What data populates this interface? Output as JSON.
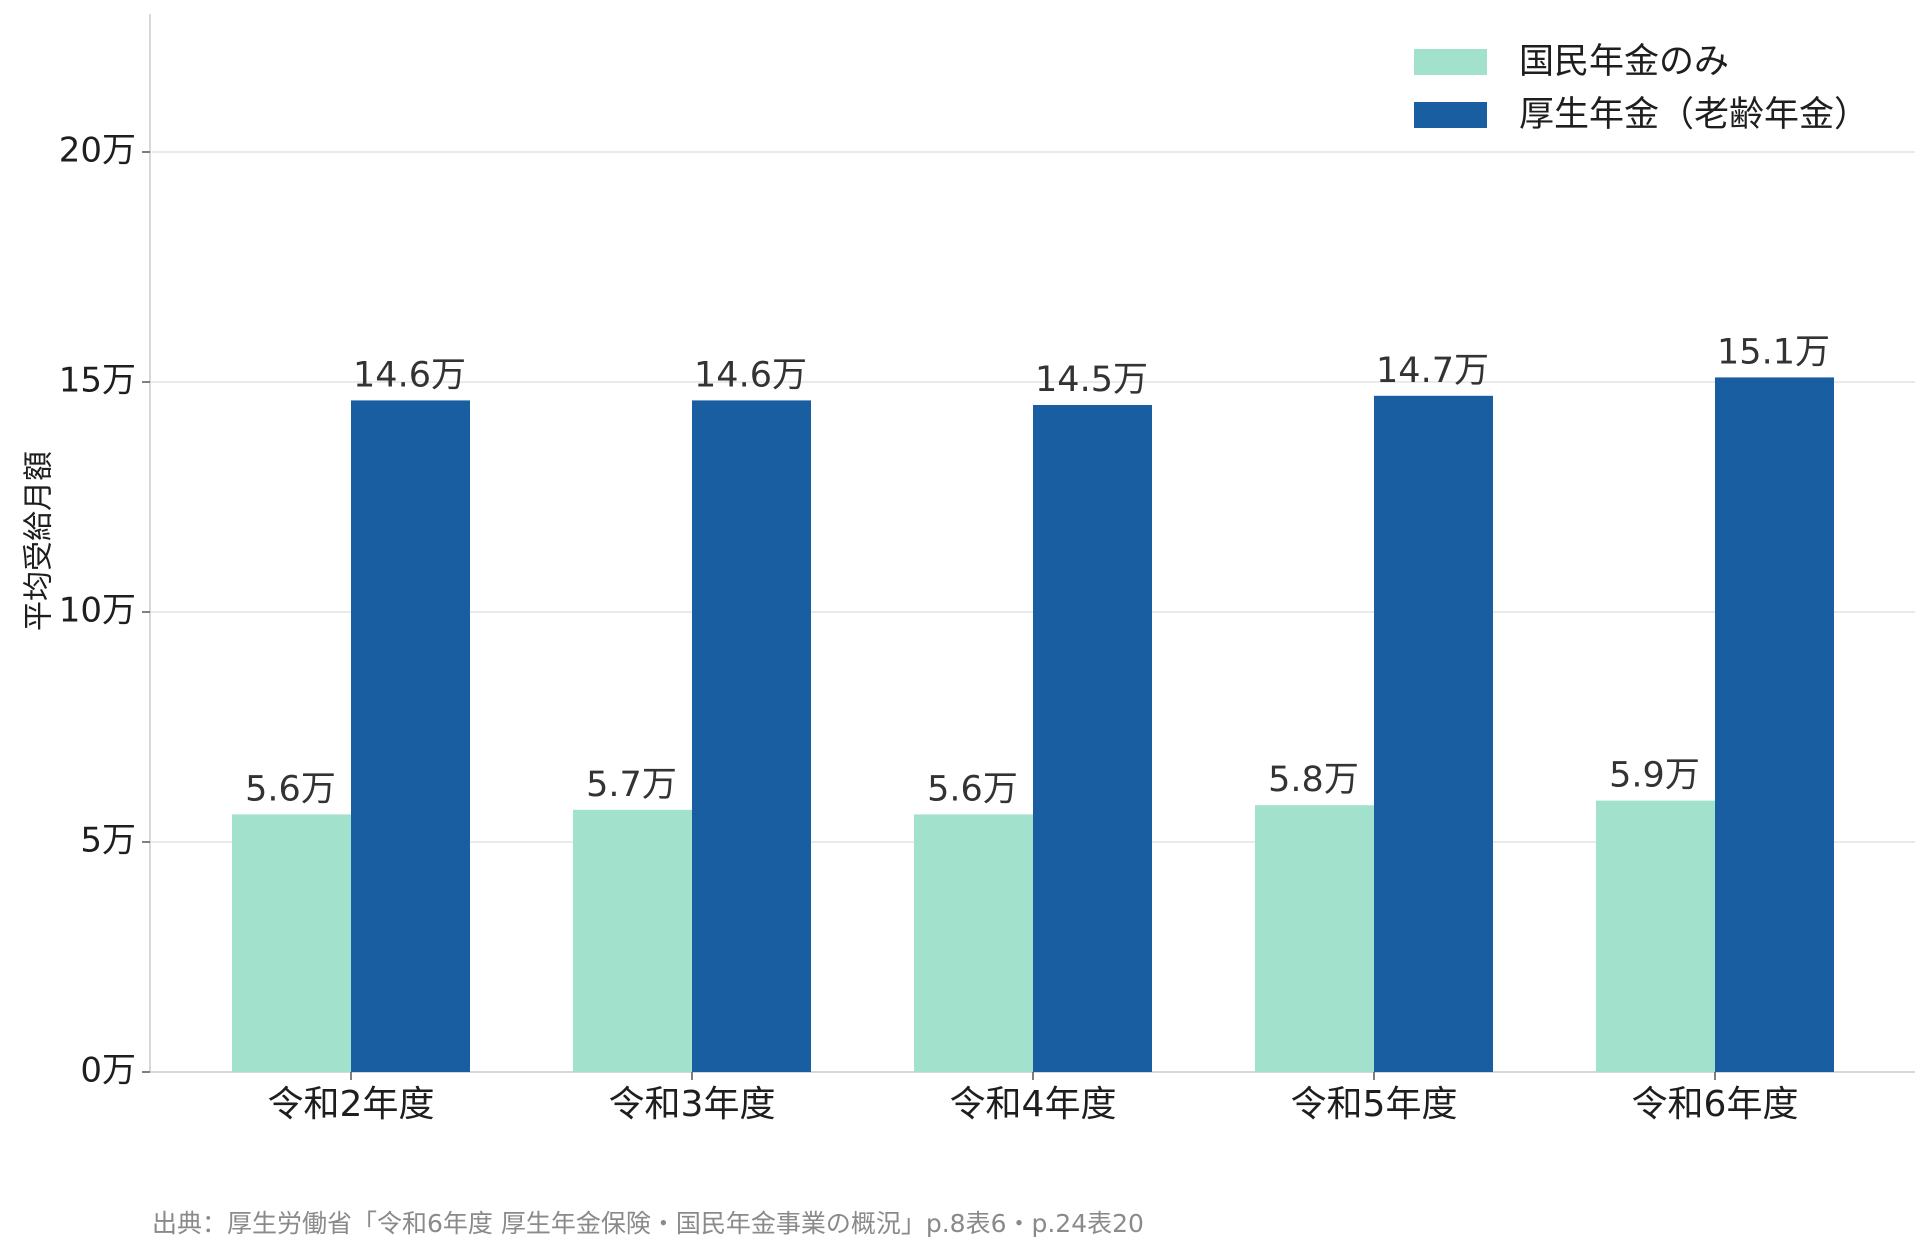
{
  "chart_data": {
    "type": "bar",
    "ylabel": "平均受給月額",
    "categories": [
      "令和2年度",
      "令和3年度",
      "令和4年度",
      "令和5年度",
      "令和6年度"
    ],
    "series": [
      {
        "name": "国民年金のみ",
        "color": "#a2e1cb",
        "values": [
          5.6,
          5.7,
          5.6,
          5.8,
          5.9
        ],
        "labels": [
          "5.6万",
          "5.7万",
          "5.6万",
          "5.8万",
          "5.9万"
        ]
      },
      {
        "name": "厚生年金（老齢年金）",
        "color": "#1a5ea2",
        "values": [
          14.6,
          14.6,
          14.5,
          14.7,
          15.1
        ],
        "labels": [
          "14.6万",
          "14.6万",
          "14.5万",
          "14.7万",
          "15.1万"
        ]
      }
    ],
    "ylim": [
      0,
      23
    ],
    "yticks": [
      0,
      5,
      10,
      15,
      20
    ],
    "ytick_labels": [
      "0万",
      "5万",
      "10万",
      "15万",
      "20万"
    ],
    "grid": true,
    "legend_position": "top-right",
    "source": "出典：厚生労働省「令和6年度 厚生年金保険・国民年金事業の概況」p.8表6・p.24表20"
  }
}
